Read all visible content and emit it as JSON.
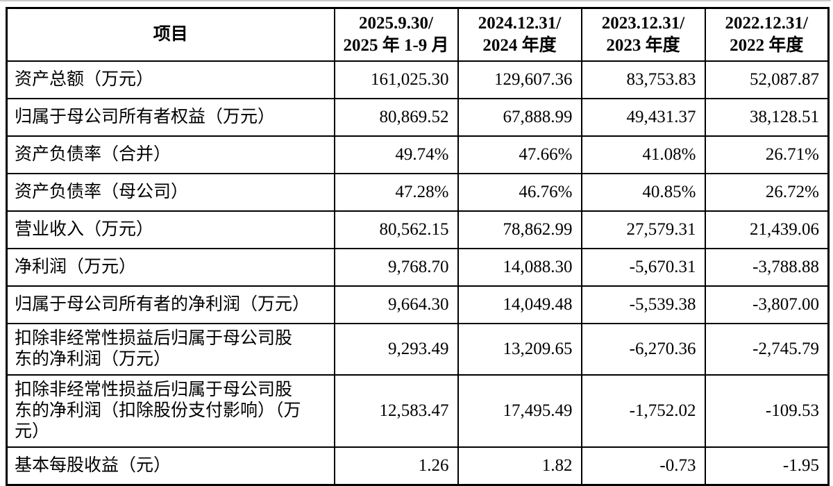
{
  "colors": {
    "text": "#000000",
    "border": "#000000",
    "background": "#ffffff",
    "top_hairline": "#c9c9c9"
  },
  "table": {
    "header": {
      "item": "项目",
      "periods": [
        "2025.9.30/\n2025 年 1-9 月",
        "2024.12.31/\n2024 年度",
        "2023.12.31/\n2023 年度",
        "2022.12.31/\n2022 年度"
      ]
    },
    "rows": [
      {
        "label": "资产总额（万元）",
        "values": [
          "161,025.30",
          "129,607.36",
          "83,753.83",
          "52,087.87"
        ]
      },
      {
        "label": "归属于母公司所有者权益（万元）",
        "values": [
          "80,869.52",
          "67,888.99",
          "49,431.37",
          "38,128.51"
        ]
      },
      {
        "label": "资产负债率（合并）",
        "values": [
          "49.74%",
          "47.66%",
          "41.08%",
          "26.71%"
        ]
      },
      {
        "label": "资产负债率（母公司）",
        "values": [
          "47.28%",
          "46.76%",
          "40.85%",
          "26.72%"
        ]
      },
      {
        "label": "营业收入（万元）",
        "values": [
          "80,562.15",
          "78,862.99",
          "27,579.31",
          "21,439.06"
        ]
      },
      {
        "label": "净利润（万元）",
        "values": [
          "9,768.70",
          "14,088.30",
          "-5,670.31",
          "-3,788.88"
        ]
      },
      {
        "label": "归属于母公司所有者的净利润（万元）",
        "values": [
          "9,664.30",
          "14,049.48",
          "-5,539.38",
          "-3,807.00"
        ]
      },
      {
        "label": "扣除非经常性损益后归属于母公司股\n东的净利润（万元）",
        "values": [
          "9,293.49",
          "13,209.65",
          "-6,270.36",
          "-2,745.79"
        ]
      },
      {
        "label": "扣除非经常性损益后归属于母公司股\n东的净利润（扣除股份支付影响）（万\n元）",
        "values": [
          "12,583.47",
          "17,495.49",
          "-1,752.02",
          "-109.53"
        ]
      },
      {
        "label": "基本每股收益（元）",
        "values": [
          "1.26",
          "1.82",
          "-0.73",
          "-1.95"
        ]
      }
    ]
  },
  "chart_data": {
    "type": "table",
    "columns": [
      "项目",
      "2025.9.30/2025 年 1-9 月",
      "2024.12.31/2024 年度",
      "2023.12.31/2023 年度",
      "2022.12.31/2022 年度"
    ],
    "rows": [
      [
        "资产总额（万元）",
        161025.3,
        129607.36,
        83753.83,
        52087.87
      ],
      [
        "归属于母公司所有者权益（万元）",
        80869.52,
        67888.99,
        49431.37,
        38128.51
      ],
      [
        "资产负债率（合并）",
        "49.74%",
        "47.66%",
        "41.08%",
        "26.71%"
      ],
      [
        "资产负债率（母公司）",
        "47.28%",
        "46.76%",
        "40.85%",
        "26.72%"
      ],
      [
        "营业收入（万元）",
        80562.15,
        78862.99,
        27579.31,
        21439.06
      ],
      [
        "净利润（万元）",
        9768.7,
        14088.3,
        -5670.31,
        -3788.88
      ],
      [
        "归属于母公司所有者的净利润（万元）",
        9664.3,
        14049.48,
        -5539.38,
        -3807.0
      ],
      [
        "扣除非经常性损益后归属于母公司股东的净利润（万元）",
        9293.49,
        13209.65,
        -6270.36,
        -2745.79
      ],
      [
        "扣除非经常性损益后归属于母公司股东的净利润（扣除股份支付影响）（万元）",
        12583.47,
        17495.49,
        -1752.02,
        -109.53
      ],
      [
        "基本每股收益（元）",
        1.26,
        1.82,
        -0.73,
        -1.95
      ]
    ]
  }
}
